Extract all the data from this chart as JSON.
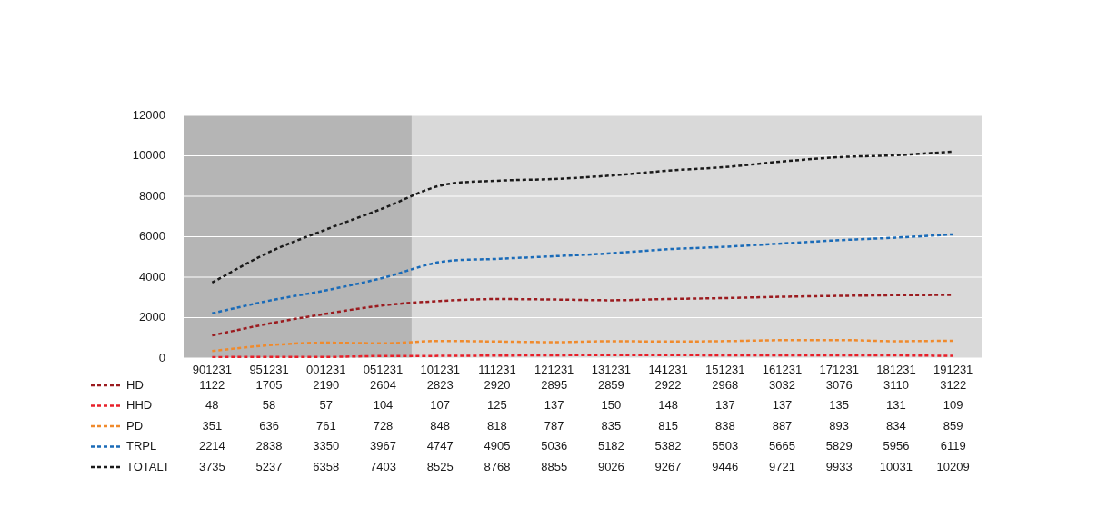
{
  "chart_data": {
    "type": "line",
    "categories": [
      "901231",
      "951231",
      "001231",
      "051231",
      "101231",
      "111231",
      "121231",
      "131231",
      "141231",
      "151231",
      "161231",
      "171231",
      "181231",
      "191231"
    ],
    "series": [
      {
        "name": "HD",
        "color": "#9b1b1f",
        "values": [
          1122,
          1705,
          2190,
          2604,
          2823,
          2920,
          2895,
          2859,
          2922,
          2968,
          3032,
          3076,
          3110,
          3122
        ]
      },
      {
        "name": "HHD",
        "color": "#e8202a",
        "values": [
          48,
          58,
          57,
          104,
          107,
          125,
          137,
          150,
          148,
          137,
          137,
          135,
          131,
          109
        ]
      },
      {
        "name": "PD",
        "color": "#f08a2c",
        "values": [
          351,
          636,
          761,
          728,
          848,
          818,
          787,
          835,
          815,
          838,
          887,
          893,
          834,
          859
        ]
      },
      {
        "name": "TRPL",
        "color": "#1a6bb8",
        "values": [
          2214,
          2838,
          3350,
          3967,
          4747,
          4905,
          5036,
          5182,
          5382,
          5503,
          5665,
          5829,
          5956,
          6119
        ]
      },
      {
        "name": "TOTALT",
        "color": "#1a1a1a",
        "values": [
          3735,
          5237,
          6358,
          7403,
          8525,
          8768,
          8855,
          9026,
          9267,
          9446,
          9721,
          9933,
          10031,
          10209
        ]
      }
    ],
    "ylim": [
      0,
      12000
    ],
    "yticks": [
      0,
      2000,
      4000,
      6000,
      8000,
      10000,
      12000
    ],
    "grid": "y",
    "legend": "bottom left",
    "marker": "none",
    "line_style": "dashed",
    "data_labels": true,
    "bands": [
      {
        "axis": "x",
        "from": "901231",
        "to": "051231",
        "label": null,
        "color": "#b5b5b5"
      }
    ]
  }
}
